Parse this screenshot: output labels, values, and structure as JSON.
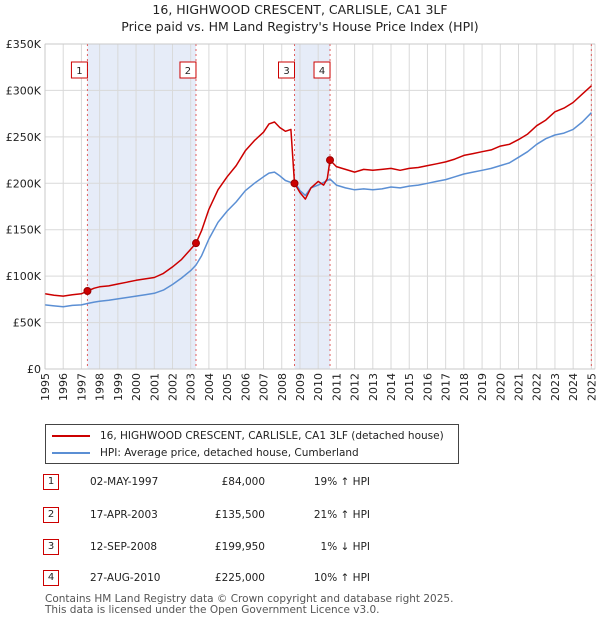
{
  "header": {
    "title": "16, HIGHWOOD CRESCENT, CARLISLE, CA1 3LF",
    "subtitle": "Price paid vs. HM Land Registry's House Price Index (HPI)"
  },
  "colors": {
    "property": "#cc0000",
    "hpi": "#5b8fd4",
    "shade": "#e6ecf8",
    "marker": "#cc0000"
  },
  "chart_data": {
    "type": "line",
    "title": "16, HIGHWOOD CRESCENT, CARLISLE, CA1 3LF",
    "subtitle": "Price paid vs. HM Land Registry's House Price Index (HPI)",
    "xlabel": "",
    "ylabel": "",
    "xlim": [
      1995.0,
      2025.2
    ],
    "ylim": [
      0,
      350000
    ],
    "x_ticks": [
      1995,
      1996,
      1997,
      1998,
      1999,
      2000,
      2001,
      2002,
      2003,
      2004,
      2005,
      2006,
      2007,
      2008,
      2009,
      2010,
      2011,
      2012,
      2013,
      2014,
      2015,
      2016,
      2017,
      2018,
      2019,
      2020,
      2021,
      2022,
      2023,
      2024,
      2025
    ],
    "y_ticks": [
      0,
      50000,
      100000,
      150000,
      200000,
      250000,
      300000,
      350000
    ],
    "y_tick_labels": [
      "£0",
      "£50K",
      "£100K",
      "£150K",
      "£200K",
      "£250K",
      "£300K",
      "£350K"
    ],
    "grid": true,
    "shaded_ranges": [
      [
        1997.33,
        2003.29
      ],
      [
        2008.7,
        2010.65
      ]
    ],
    "series": [
      {
        "name": "16, HIGHWOOD CRESCENT, CARLISLE, CA1 3LF (detached house)",
        "color": "#cc0000",
        "x": [
          1995.0,
          1995.5,
          1996.0,
          1996.5,
          1997.0,
          1997.33,
          1997.7,
          1998.0,
          1998.5,
          1999.0,
          1999.5,
          2000.0,
          2000.5,
          2001.0,
          2001.5,
          2002.0,
          2002.5,
          2003.0,
          2003.29,
          2003.6,
          2004.0,
          2004.5,
          2005.0,
          2005.5,
          2006.0,
          2006.5,
          2007.0,
          2007.3,
          2007.6,
          2007.9,
          2008.2,
          2008.5,
          2008.7,
          2009.0,
          2009.3,
          2009.6,
          2010.0,
          2010.3,
          2010.5,
          2010.65,
          2011.0,
          2011.5,
          2012.0,
          2012.5,
          2013.0,
          2013.5,
          2014.0,
          2014.5,
          2015.0,
          2015.5,
          2016.0,
          2016.5,
          2017.0,
          2017.5,
          2018.0,
          2018.5,
          2019.0,
          2019.5,
          2020.0,
          2020.5,
          2021.0,
          2021.5,
          2022.0,
          2022.5,
          2023.0,
          2023.5,
          2024.0,
          2024.5,
          2025.0
        ],
        "values": [
          81000,
          79500,
          78500,
          80000,
          81000,
          84000,
          87000,
          88500,
          89500,
          91500,
          93500,
          95500,
          97000,
          98500,
          103000,
          110000,
          118000,
          129000,
          135500,
          149000,
          172000,
          193000,
          207000,
          219000,
          235000,
          246000,
          255000,
          264000,
          266000,
          260000,
          256000,
          258000,
          199950,
          190000,
          183000,
          195000,
          202000,
          198000,
          205000,
          225000,
          218000,
          215000,
          212000,
          215000,
          214000,
          215000,
          216000,
          214000,
          216000,
          217000,
          219000,
          221000,
          223000,
          226000,
          230000,
          232000,
          234000,
          236000,
          240000,
          242000,
          247000,
          253000,
          262000,
          268000,
          277000,
          281000,
          287000,
          296000,
          305000
        ]
      },
      {
        "name": "HPI: Average price, detached house, Cumberland",
        "color": "#5b8fd4",
        "x": [
          1995.0,
          1995.5,
          1996.0,
          1996.5,
          1997.0,
          1997.33,
          1997.7,
          1998.0,
          1998.5,
          1999.0,
          1999.5,
          2000.0,
          2000.5,
          2001.0,
          2001.5,
          2002.0,
          2002.5,
          2003.0,
          2003.29,
          2003.6,
          2004.0,
          2004.5,
          2005.0,
          2005.5,
          2006.0,
          2006.5,
          2007.0,
          2007.3,
          2007.6,
          2007.9,
          2008.2,
          2008.5,
          2008.7,
          2009.0,
          2009.3,
          2009.6,
          2010.0,
          2010.3,
          2010.5,
          2010.65,
          2011.0,
          2011.5,
          2012.0,
          2012.5,
          2013.0,
          2013.5,
          2014.0,
          2014.5,
          2015.0,
          2015.5,
          2016.0,
          2016.5,
          2017.0,
          2017.5,
          2018.0,
          2018.5,
          2019.0,
          2019.5,
          2020.0,
          2020.5,
          2021.0,
          2021.5,
          2022.0,
          2022.5,
          2023.0,
          2023.5,
          2024.0,
          2024.5,
          2025.0
        ],
        "values": [
          69000,
          68000,
          67000,
          68500,
          69000,
          70500,
          72000,
          73000,
          74000,
          75500,
          77000,
          78500,
          80000,
          81500,
          85000,
          91000,
          98000,
          106000,
          112000,
          122000,
          140000,
          158000,
          170000,
          180000,
          192000,
          200000,
          207000,
          211000,
          212000,
          208000,
          203000,
          201000,
          202000,
          192000,
          187000,
          195000,
          198000,
          201000,
          203000,
          204500,
          198000,
          195000,
          193000,
          194000,
          193000,
          194000,
          196000,
          195000,
          197000,
          198000,
          200000,
          202000,
          204000,
          207000,
          210000,
          212000,
          214000,
          216000,
          219000,
          222000,
          228000,
          234000,
          242000,
          248000,
          252000,
          254000,
          258000,
          266000,
          276000
        ]
      }
    ],
    "transactions": [
      {
        "n": "1",
        "x": 1997.33,
        "date": "02-MAY-1997",
        "price": 84000,
        "price_label": "£84,000",
        "hpi_label": "19% ↑ HPI"
      },
      {
        "n": "2",
        "x": 2003.29,
        "date": "17-APR-2003",
        "price": 135500,
        "price_label": "£135,500",
        "hpi_label": "21% ↑ HPI"
      },
      {
        "n": "3",
        "x": 2008.7,
        "date": "12-SEP-2008",
        "price": 199950,
        "price_label": "£199,950",
        "hpi_label": "1% ↓ HPI"
      },
      {
        "n": "4",
        "x": 2010.65,
        "date": "27-AUG-2010",
        "price": 225000,
        "price_label": "£225,000",
        "hpi_label": "10% ↑ HPI"
      }
    ]
  },
  "legend": {
    "property_label": "16, HIGHWOOD CRESCENT, CARLISLE, CA1 3LF (detached house)",
    "hpi_label": "HPI: Average price, detached house, Cumberland"
  },
  "footer": {
    "line1": "Contains HM Land Registry data © Crown copyright and database right 2025.",
    "line2": "This data is licensed under the Open Government Licence v3.0."
  }
}
